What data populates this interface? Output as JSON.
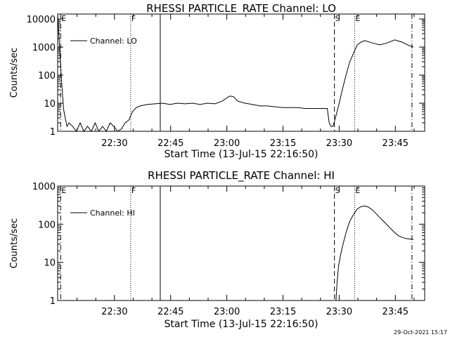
{
  "footer_timestamp": "29-Oct-2021 15:17",
  "chart_data": [
    {
      "type": "line",
      "title": "RHESSI PARTICLE_RATE Channel: LO",
      "xlabel": "Start Time (13-Jul-15 22:16:50)",
      "ylabel": "Counts/sec",
      "y_scale": "log",
      "xlim_minutes": [
        -2,
        96
      ],
      "ylim": [
        1,
        15000
      ],
      "x_tick_labels": [
        "22:30",
        "22:45",
        "23:00",
        "23:15",
        "23:30",
        "23:45"
      ],
      "x_tick_values_minutes": [
        13.17,
        28.17,
        43.17,
        58.17,
        73.17,
        88.17
      ],
      "y_tick_labels": [
        "1",
        "10",
        "100",
        "1000",
        "10000"
      ],
      "y_tick_values": [
        1,
        10,
        100,
        1000,
        10000
      ],
      "legend": {
        "label": "Channel: LO",
        "position": "top-left"
      },
      "markers": [
        {
          "label": "E",
          "x_minutes": -1.2,
          "style": "dashdot"
        },
        {
          "label": "F",
          "x_minutes": 17.5,
          "style": "dotted"
        },
        {
          "label": "",
          "x_minutes": 25.4,
          "style": "solid"
        },
        {
          "label": "S",
          "x_minutes": 71.9,
          "style": "dashed"
        },
        {
          "label": "E",
          "x_minutes": 77.3,
          "style": "dotted"
        },
        {
          "label": "",
          "x_minutes": 92.6,
          "style": "dashdot"
        }
      ],
      "series": [
        {
          "x": [
            -2,
            -1.2,
            -0.8,
            -0.4,
            0,
            0.5,
            1,
            2,
            3,
            4,
            5,
            6,
            7,
            8,
            9,
            10,
            11,
            12,
            13,
            14,
            15,
            16,
            17,
            18,
            19,
            20,
            22,
            24,
            26,
            28,
            30,
            32,
            34,
            36,
            38,
            40,
            42,
            43,
            44,
            45,
            46,
            48,
            50,
            52,
            54,
            56,
            58,
            60,
            62,
            64,
            66,
            68,
            70,
            70.5,
            71,
            71.5,
            72,
            73,
            74,
            75,
            76,
            77,
            78,
            79,
            80,
            82,
            84,
            86,
            88,
            90,
            92,
            93
          ],
          "y": [
            15000,
            200,
            30,
            6,
            3,
            1.5,
            2,
            1.5,
            1,
            2,
            1,
            1.5,
            1,
            2,
            1,
            1.5,
            1,
            2,
            1.5,
            1,
            1.2,
            2,
            2.5,
            5,
            7,
            8,
            9,
            9.5,
            10,
            9,
            10,
            9.5,
            10,
            9,
            10,
            9.5,
            12,
            15,
            18,
            17,
            12,
            10,
            9,
            8,
            8,
            7.5,
            7,
            7,
            7,
            6.5,
            6.5,
            6.5,
            6.5,
            2,
            1.5,
            1.5,
            2.5,
            8,
            30,
            100,
            300,
            600,
            1200,
            1500,
            1700,
            1400,
            1200,
            1400,
            1800,
            1500,
            1100,
            1000
          ]
        }
      ]
    },
    {
      "type": "line",
      "title": "RHESSI PARTICLE_RATE Channel: HI",
      "xlabel": "Start Time (13-Jul-15 22:16:50)",
      "ylabel": "Counts/sec",
      "y_scale": "log",
      "xlim_minutes": [
        -2,
        96
      ],
      "ylim": [
        1,
        1000
      ],
      "x_tick_labels": [
        "22:30",
        "22:45",
        "23:00",
        "23:15",
        "23:30",
        "23:45"
      ],
      "x_tick_values_minutes": [
        13.17,
        28.17,
        43.17,
        58.17,
        73.17,
        88.17
      ],
      "y_tick_labels": [
        "1",
        "10",
        "100",
        "1000"
      ],
      "y_tick_values": [
        1,
        10,
        100,
        1000
      ],
      "legend": {
        "label": "Channel: HI",
        "position": "top-left"
      },
      "markers": [
        {
          "label": "E",
          "x_minutes": -1.2,
          "style": "dashdot"
        },
        {
          "label": "F",
          "x_minutes": 17.5,
          "style": "dotted"
        },
        {
          "label": "",
          "x_minutes": 25.4,
          "style": "solid"
        },
        {
          "label": "S",
          "x_minutes": 71.9,
          "style": "dashed"
        },
        {
          "label": "E",
          "x_minutes": 77.3,
          "style": "dotted"
        },
        {
          "label": "",
          "x_minutes": 92.6,
          "style": "dashdot"
        }
      ],
      "series": [
        {
          "x": [
            72.3,
            72.6,
            73,
            73.5,
            74,
            75,
            76,
            77,
            78,
            79,
            80,
            81,
            82,
            83,
            84,
            85,
            86,
            87,
            88,
            89,
            90,
            91,
            92,
            93
          ],
          "y": [
            1,
            3,
            8,
            15,
            25,
            60,
            120,
            180,
            250,
            290,
            300,
            280,
            240,
            190,
            150,
            120,
            95,
            75,
            60,
            50,
            45,
            42,
            41,
            40
          ]
        }
      ]
    }
  ]
}
